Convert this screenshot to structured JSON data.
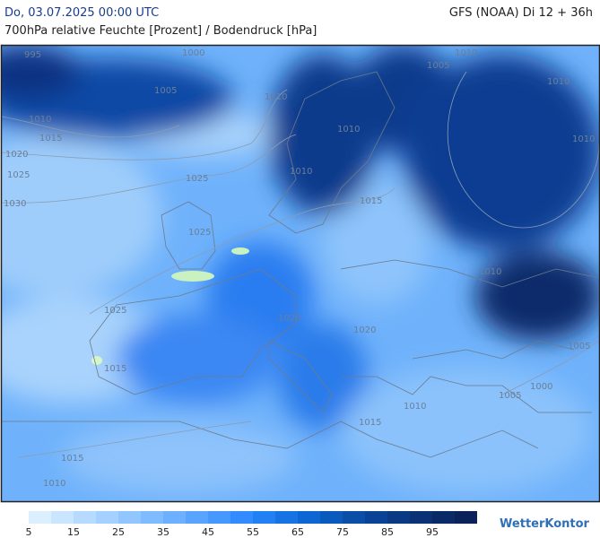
{
  "header": {
    "datetime": "Do, 03.07.2025 00:00 UTC",
    "model": "GFS (NOAA) Di 12 + 36h",
    "subtitle": "700hPa relative Feuchte [Prozent] / Bodendruck [hPa]"
  },
  "isobars": [
    "995",
    "1000",
    "1005",
    "1010",
    "1010",
    "1015",
    "1020",
    "1025",
    "1030",
    "1025",
    "1025",
    "1025",
    "1015",
    "1015",
    "1010",
    "1020",
    "1020",
    "1015",
    "1010",
    "1010",
    "1005",
    "1010",
    "1010",
    "1010",
    "1010",
    "1005",
    "1000",
    "1005",
    "1010",
    "1015"
  ],
  "legend": {
    "ticks": [
      5,
      15,
      25,
      35,
      45,
      55,
      65,
      75,
      85,
      95
    ],
    "colors": [
      "#dcefff",
      "#c9e5ff",
      "#b6dbff",
      "#a4d1ff",
      "#91c6ff",
      "#7ebbff",
      "#6cb0ff",
      "#59a4ff",
      "#4698ff",
      "#338cff",
      "#2180f3",
      "#1673e3",
      "#0d66d1",
      "#0a59bd",
      "#0a4ea8",
      "#0a4396",
      "#0a3a84",
      "#0a3175",
      "#0a2a67",
      "#0a2259"
    ]
  },
  "logo": "WetterKontor"
}
